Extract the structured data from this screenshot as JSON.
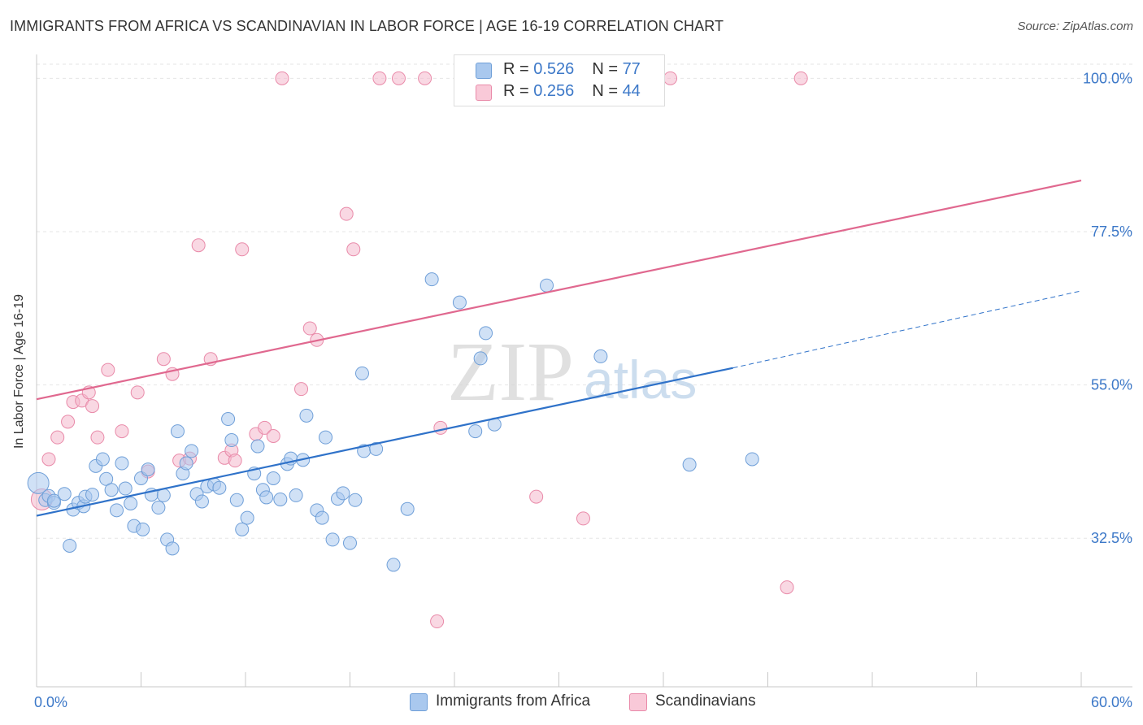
{
  "title": "IMMIGRANTS FROM AFRICA VS SCANDINAVIAN IN LABOR FORCE | AGE 16-19 CORRELATION CHART",
  "source": "Source: ZipAtlas.com",
  "watermark": {
    "zip": "ZIP",
    "atlas": "atlas"
  },
  "colors": {
    "blue_fill": "#a9c8ee",
    "blue_stroke": "#6f9fd8",
    "blue_line": "#2f72c9",
    "pink_fill": "#f4b8cc",
    "pink_stroke": "#e98aa9",
    "pink_line": "#e0688f",
    "tick_label": "#3c78c8",
    "grid": "#e6e6e6"
  },
  "legend": {
    "r_label": "R =",
    "n_label": "N =",
    "blue": {
      "r": "0.526",
      "n": "77"
    },
    "pink": {
      "r": "0.256",
      "n": "44"
    }
  },
  "bottom_legend": {
    "blue": "Immigrants from Africa",
    "pink": "Scandinavians"
  },
  "chart_data": {
    "type": "scatter",
    "ylabel": "In Labor Force | Age 16-19",
    "xlabel": "",
    "xlim": [
      0.0,
      60.0
    ],
    "ylim": [
      10.7,
      103.5
    ],
    "x_tick_labels": {
      "left": "0.0%",
      "right": "60.0%"
    },
    "y_ticks": [
      {
        "value": 32.5,
        "label": "32.5%"
      },
      {
        "value": 55.0,
        "label": "55.0%"
      },
      {
        "value": 77.5,
        "label": "77.5%"
      },
      {
        "value": 100.0,
        "label": "100.0%"
      }
    ],
    "grid": true,
    "legend_position": "top-center",
    "series": [
      {
        "name": "Immigrants from Africa",
        "color": "#6f9fd8",
        "r": 0.526,
        "n": 77,
        "trend": {
          "x": [
            0.0,
            40.0
          ],
          "y": [
            35.8,
            57.5
          ],
          "dashed_to": [
            60.0,
            68.8
          ]
        },
        "points": [
          [
            0.1,
            40.6
          ],
          [
            0.5,
            38.1
          ],
          [
            0.7,
            38.7
          ],
          [
            1.0,
            37.7
          ],
          [
            1.0,
            38.0
          ],
          [
            1.6,
            39.0
          ],
          [
            1.9,
            31.4
          ],
          [
            2.1,
            36.7
          ],
          [
            2.4,
            37.7
          ],
          [
            2.7,
            37.2
          ],
          [
            2.8,
            38.6
          ],
          [
            3.2,
            38.9
          ],
          [
            3.4,
            43.1
          ],
          [
            3.8,
            44.1
          ],
          [
            4.0,
            41.2
          ],
          [
            4.3,
            39.6
          ],
          [
            4.6,
            36.6
          ],
          [
            4.9,
            43.5
          ],
          [
            5.1,
            39.8
          ],
          [
            5.4,
            37.6
          ],
          [
            5.6,
            34.3
          ],
          [
            6.0,
            41.3
          ],
          [
            6.1,
            33.8
          ],
          [
            6.4,
            42.6
          ],
          [
            6.6,
            38.9
          ],
          [
            7.0,
            37.0
          ],
          [
            7.3,
            38.8
          ],
          [
            7.5,
            32.3
          ],
          [
            7.8,
            31.0
          ],
          [
            8.1,
            48.2
          ],
          [
            8.4,
            42.0
          ],
          [
            8.6,
            43.5
          ],
          [
            8.9,
            45.3
          ],
          [
            9.2,
            39.0
          ],
          [
            9.5,
            37.9
          ],
          [
            9.8,
            40.1
          ],
          [
            10.2,
            40.4
          ],
          [
            10.5,
            39.9
          ],
          [
            11.0,
            50.0
          ],
          [
            11.2,
            46.9
          ],
          [
            11.5,
            38.1
          ],
          [
            11.8,
            33.8
          ],
          [
            12.1,
            35.5
          ],
          [
            12.5,
            42.0
          ],
          [
            12.7,
            46.0
          ],
          [
            13.0,
            39.6
          ],
          [
            13.2,
            38.5
          ],
          [
            13.6,
            41.3
          ],
          [
            14.0,
            38.2
          ],
          [
            14.4,
            43.4
          ],
          [
            14.6,
            44.2
          ],
          [
            14.9,
            38.8
          ],
          [
            15.3,
            44.0
          ],
          [
            15.5,
            50.5
          ],
          [
            16.1,
            36.6
          ],
          [
            16.4,
            35.5
          ],
          [
            16.6,
            47.3
          ],
          [
            17.0,
            32.3
          ],
          [
            17.3,
            38.3
          ],
          [
            17.6,
            39.1
          ],
          [
            18.0,
            31.8
          ],
          [
            18.3,
            38.1
          ],
          [
            18.7,
            56.7
          ],
          [
            18.8,
            45.3
          ],
          [
            19.5,
            45.6
          ],
          [
            20.5,
            28.6
          ],
          [
            21.3,
            36.8
          ],
          [
            22.7,
            70.5
          ],
          [
            24.3,
            67.1
          ],
          [
            25.2,
            48.2
          ],
          [
            25.5,
            58.9
          ],
          [
            25.8,
            62.6
          ],
          [
            26.3,
            49.2
          ],
          [
            29.3,
            69.6
          ],
          [
            32.4,
            59.2
          ],
          [
            37.5,
            43.3
          ],
          [
            41.1,
            44.1
          ]
        ]
      },
      {
        "name": "Scandinavians",
        "color": "#e98aa9",
        "r": 0.256,
        "n": 44,
        "trend": {
          "x": [
            0.0,
            60.0
          ],
          "y": [
            52.9,
            85.0
          ]
        },
        "points": [
          [
            0.3,
            38.2
          ],
          [
            0.7,
            44.1
          ],
          [
            1.2,
            47.3
          ],
          [
            1.8,
            49.6
          ],
          [
            2.1,
            52.5
          ],
          [
            2.6,
            52.7
          ],
          [
            3.0,
            53.9
          ],
          [
            3.2,
            51.9
          ],
          [
            3.5,
            47.3
          ],
          [
            4.1,
            57.2
          ],
          [
            4.9,
            48.2
          ],
          [
            5.8,
            53.9
          ],
          [
            6.4,
            42.3
          ],
          [
            7.3,
            58.8
          ],
          [
            7.8,
            56.6
          ],
          [
            8.2,
            43.9
          ],
          [
            8.8,
            44.2
          ],
          [
            9.3,
            75.5
          ],
          [
            10.0,
            58.8
          ],
          [
            10.8,
            44.3
          ],
          [
            11.2,
            45.4
          ],
          [
            11.4,
            43.9
          ],
          [
            11.8,
            74.9
          ],
          [
            12.6,
            47.8
          ],
          [
            13.1,
            48.7
          ],
          [
            13.6,
            47.5
          ],
          [
            14.1,
            100.0
          ],
          [
            15.2,
            54.4
          ],
          [
            15.7,
            63.3
          ],
          [
            16.1,
            61.6
          ],
          [
            17.8,
            80.1
          ],
          [
            18.2,
            74.9
          ],
          [
            19.7,
            100.0
          ],
          [
            20.8,
            100.0
          ],
          [
            22.3,
            100.0
          ],
          [
            23.0,
            20.3
          ],
          [
            23.2,
            48.7
          ],
          [
            24.5,
            100.0
          ],
          [
            25.8,
            100.0
          ],
          [
            28.7,
            38.6
          ],
          [
            31.4,
            35.4
          ],
          [
            36.4,
            100.0
          ],
          [
            43.1,
            25.3
          ],
          [
            43.9,
            100.0
          ]
        ]
      }
    ]
  }
}
